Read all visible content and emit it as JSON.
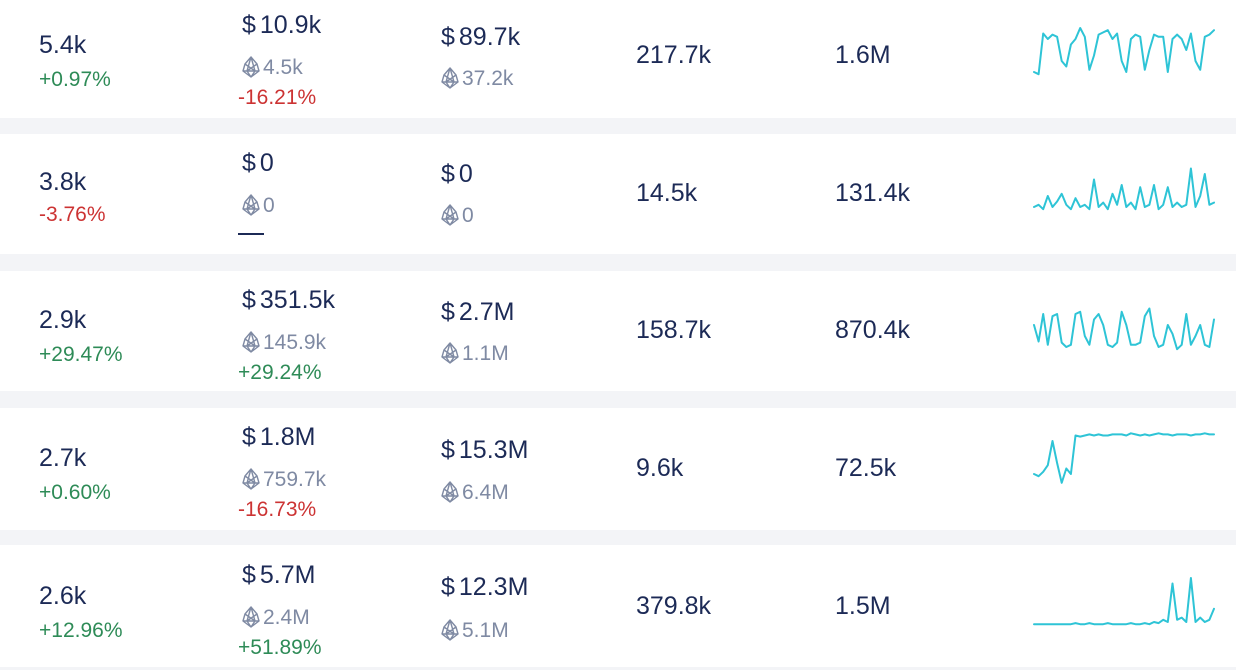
{
  "colors": {
    "positive": "#2e8b57",
    "negative": "#cc3333",
    "text": "#1c2a56",
    "muted": "#7f8aa3",
    "sparkline": "#2ec4d6"
  },
  "icons": {
    "currency_usd": "$",
    "currency_eos": "eos-icon"
  },
  "rows": [
    {
      "count": "5.4k",
      "count_change": "+0.97%",
      "count_change_dir": "up",
      "volume_usd": "10.9k",
      "volume_eos": "4.5k",
      "volume_change": "-16.21%",
      "volume_change_dir": "down",
      "total_usd": "89.7k",
      "total_eos": "37.2k",
      "metric_a": "217.7k",
      "metric_b": "1.6M",
      "trend": [
        10,
        8,
        45,
        40,
        44,
        42,
        20,
        15,
        35,
        40,
        50,
        42,
        12,
        25,
        44,
        46,
        48,
        40,
        45,
        20,
        10,
        40,
        44,
        42,
        12,
        30,
        44,
        42,
        42,
        10,
        40,
        44,
        40,
        30,
        45,
        20,
        12,
        42,
        44,
        48
      ]
    },
    {
      "count": "3.8k",
      "count_change": "-3.76%",
      "count_change_dir": "down",
      "volume_usd": "0",
      "volume_eos": "0",
      "volume_change": "",
      "volume_change_dir": "flat",
      "total_usd": "0",
      "total_eos": "0",
      "metric_a": "14.5k",
      "metric_b": "131.4k",
      "trend": [
        10,
        12,
        8,
        20,
        10,
        15,
        22,
        12,
        8,
        18,
        10,
        12,
        8,
        35,
        10,
        14,
        8,
        22,
        12,
        30,
        10,
        14,
        8,
        28,
        10,
        12,
        30,
        8,
        12,
        28,
        10,
        14,
        10,
        12,
        45,
        10,
        20,
        40,
        12,
        14
      ]
    },
    {
      "count": "2.9k",
      "count_change": "+29.47%",
      "count_change_dir": "up",
      "volume_usd": "351.5k",
      "volume_eos": "145.9k",
      "volume_change": "+29.24%",
      "volume_change_dir": "up",
      "total_usd": "2.7M",
      "total_eos": "1.1M",
      "metric_a": "158.7k",
      "metric_b": "870.4k",
      "trend": [
        30,
        15,
        40,
        12,
        38,
        40,
        14,
        10,
        12,
        40,
        42,
        20,
        12,
        35,
        40,
        30,
        12,
        10,
        14,
        42,
        30,
        12,
        12,
        14,
        38,
        45,
        20,
        10,
        12,
        30,
        22,
        8,
        12,
        40,
        12,
        20,
        30,
        12,
        10,
        35
      ]
    },
    {
      "count": "2.7k",
      "count_change": "+0.60%",
      "count_change_dir": "up",
      "volume_usd": "1.8M",
      "volume_eos": "759.7k",
      "volume_change": "-16.73%",
      "volume_change_dir": "down",
      "total_usd": "15.3M",
      "total_eos": "6.4M",
      "metric_a": "9.6k",
      "metric_b": "72.5k",
      "trend": [
        20,
        18,
        22,
        28,
        50,
        30,
        12,
        25,
        20,
        55,
        54,
        55,
        56,
        55,
        56,
        55,
        55,
        56,
        56,
        56,
        55,
        57,
        56,
        55,
        56,
        55,
        56,
        57,
        56,
        56,
        55,
        56,
        56,
        56,
        55,
        56,
        56,
        57,
        56,
        56
      ]
    },
    {
      "count": "2.6k",
      "count_change": "+12.96%",
      "count_change_dir": "up",
      "volume_usd": "5.7M",
      "volume_eos": "2.4M",
      "volume_change": "+51.89%",
      "volume_change_dir": "up",
      "total_usd": "12.3M",
      "total_eos": "5.1M",
      "metric_a": "379.8k",
      "metric_b": "1.5M",
      "trend": [
        8,
        8,
        8,
        8,
        8,
        8,
        8,
        8,
        8,
        9,
        8,
        8,
        9,
        8,
        8,
        8,
        9,
        8,
        8,
        8,
        8,
        9,
        8,
        8,
        9,
        8,
        10,
        9,
        12,
        10,
        45,
        12,
        14,
        10,
        50,
        10,
        14,
        10,
        12,
        22
      ]
    }
  ]
}
